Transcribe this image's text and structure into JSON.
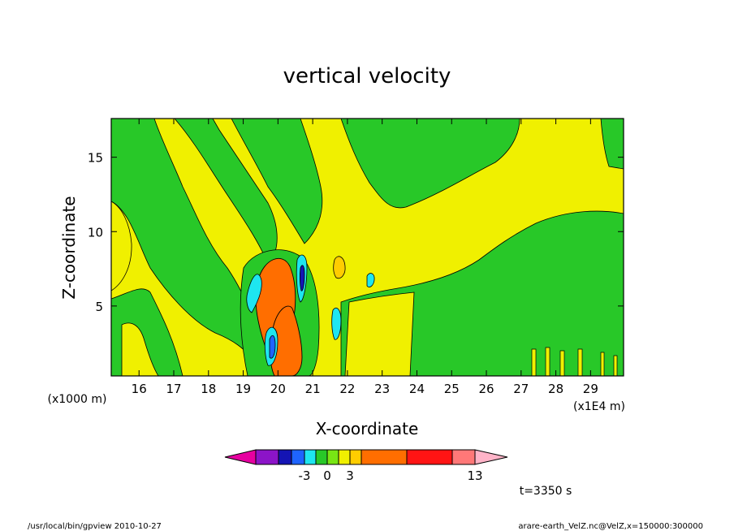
{
  "chart_data": {
    "type": "heatmap",
    "title": "vertical velocity",
    "xlabel": "X-coordinate",
    "ylabel": "Z-coordinate",
    "x_unit_label": "(x1E4 m)",
    "y_unit_label": "(x1000 m)",
    "xlim": [
      15.2,
      29.95
    ],
    "ylim": [
      0.3,
      17.6
    ],
    "x_ticks": [
      "16",
      "17",
      "18",
      "19",
      "20",
      "21",
      "22",
      "23",
      "24",
      "25",
      "26",
      "27",
      "28",
      "29"
    ],
    "y_ticks": [
      "5",
      "10",
      "15"
    ],
    "levels_colors": [
      "#e600a0",
      "#8c14c8",
      "#1414b4",
      "#1e64ff",
      "#1ee6f0",
      "#28c828",
      "#78e614",
      "#f0f000",
      "#ffcd00",
      "#ff6e00",
      "#ff1414",
      "#ff7878",
      "#ffb4c8"
    ],
    "colorbar_labels": [
      "-3",
      "0",
      "3",
      "13"
    ],
    "colorbar_label_index": [
      3,
      5,
      7,
      11
    ],
    "time_label": "t=3350 s",
    "footer_left": "/usr/local/bin/gpview   2010-10-27",
    "footer_right": "arare-earth_VelZ.nc@VelZ,x=150000:300000"
  }
}
